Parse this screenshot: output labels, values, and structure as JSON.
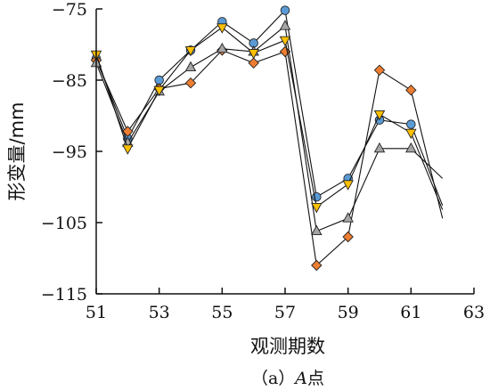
{
  "chart_data": {
    "type": "line",
    "title": "",
    "xlabel": "观测期数",
    "ylabel": "形变量/mm",
    "caption": {
      "prefix": "（a）",
      "point": "A",
      "suffix": "点"
    },
    "xlim": [
      51,
      63
    ],
    "ylim": [
      -115,
      -75
    ],
    "xticks": [
      51,
      53,
      55,
      57,
      59,
      61,
      63
    ],
    "yticks": [
      -75,
      -85,
      -95,
      -105,
      -115
    ],
    "grid": false,
    "legend": "none",
    "series": [
      {
        "marker": "circle",
        "marker_color": "#5B9BD5",
        "points": [
          [
            51,
            -82
          ],
          [
            52,
            -93.2
          ],
          [
            53,
            -85
          ],
          [
            54,
            -80.8
          ],
          [
            55,
            -76.8
          ],
          [
            56,
            -79.8
          ],
          [
            57,
            -75.2
          ],
          [
            58,
            -101.4
          ],
          [
            59,
            -98.8
          ],
          [
            60,
            -90.6
          ],
          [
            61,
            -91.2
          ],
          [
            62,
            -102.6
          ]
        ]
      },
      {
        "marker": "diamond",
        "marker_color": "#ED7D31",
        "points": [
          [
            51,
            -82.2
          ],
          [
            52,
            -92.2
          ],
          [
            53,
            -86.2
          ],
          [
            54,
            -85.4
          ],
          [
            55,
            -80.8
          ],
          [
            56,
            -82.6
          ],
          [
            57,
            -81
          ],
          [
            58,
            -111
          ],
          [
            59,
            -107
          ],
          [
            60,
            -83.6
          ],
          [
            61,
            -86.4
          ],
          [
            62,
            -104.4
          ]
        ]
      },
      {
        "marker": "triangle-up",
        "marker_color": "#A5A5A5",
        "points": [
          [
            51,
            -82.6
          ],
          [
            52,
            -93.8
          ],
          [
            53,
            -86.6
          ],
          [
            54,
            -83.2
          ],
          [
            55,
            -80.6
          ],
          [
            56,
            -81
          ],
          [
            57,
            -77.4
          ],
          [
            58,
            -106.2
          ],
          [
            59,
            -104.4
          ],
          [
            60,
            -94.6
          ],
          [
            61,
            -94.6
          ],
          [
            62,
            -98.8
          ]
        ]
      },
      {
        "marker": "triangle-down",
        "marker_color": "#FFC000",
        "points": [
          [
            51,
            -81.4
          ],
          [
            52,
            -94.6
          ],
          [
            53,
            -86.4
          ],
          [
            54,
            -80.8
          ],
          [
            55,
            -77.6
          ],
          [
            56,
            -81.2
          ],
          [
            57,
            -79.4
          ],
          [
            58,
            -102.8
          ],
          [
            59,
            -99.6
          ],
          [
            60,
            -89.8
          ],
          [
            61,
            -92.4
          ],
          [
            62,
            -103.2
          ]
        ]
      }
    ]
  }
}
